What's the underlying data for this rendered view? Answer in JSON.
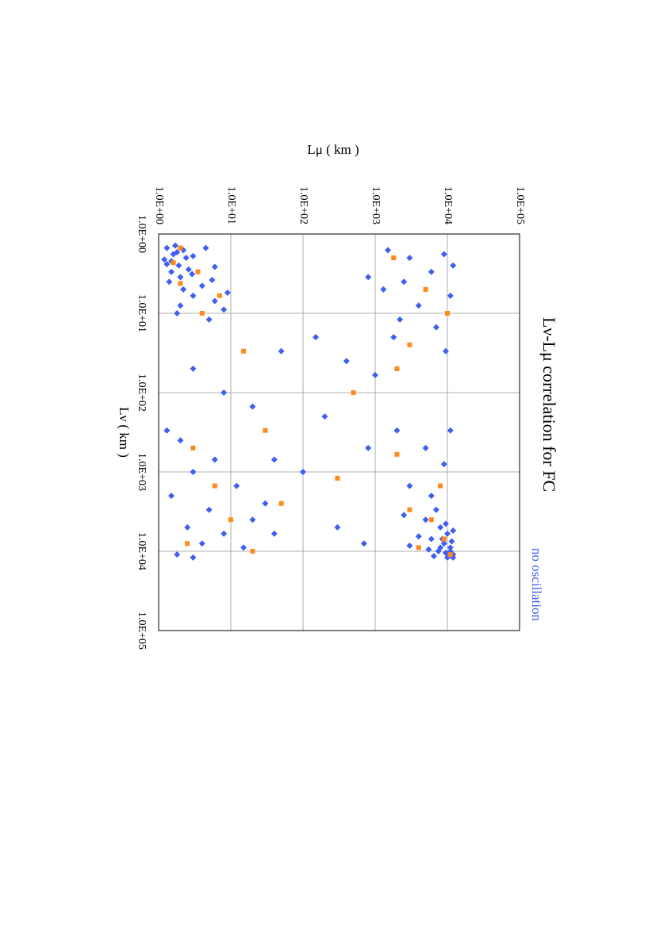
{
  "chart_data": {
    "type": "scatter",
    "title": "Lν-Lμ correlation for FC",
    "x_label": "Lν  ( km )",
    "y_label": "Lμ  ( km )",
    "annotation": "no oscillation",
    "log_x": true,
    "log_y": true,
    "grid": true,
    "xlim": [
      1,
      100000
    ],
    "ylim": [
      1,
      100000
    ],
    "xticks": [
      {
        "value": 1,
        "label": "1.0E+00"
      },
      {
        "value": 10,
        "label": "1.0E+01"
      },
      {
        "value": 100,
        "label": "1.0E+02"
      },
      {
        "value": 1000,
        "label": "1.0E+03"
      },
      {
        "value": 10000,
        "label": "1.0E+04"
      },
      {
        "value": 100000,
        "label": "1.0E+05"
      }
    ],
    "yticks": [
      {
        "value": 1,
        "label": "1.0E+00"
      },
      {
        "value": 10,
        "label": "1.0E+01"
      },
      {
        "value": 100,
        "label": "1.0E+02"
      },
      {
        "value": 1000,
        "label": "1.0E+03"
      },
      {
        "value": 10000,
        "label": "1.0E+04"
      },
      {
        "value": 100000,
        "label": "1.0E+05"
      }
    ],
    "series": [
      {
        "color": "#3f5ff2",
        "marker": "diamond",
        "x": [
          1.5,
          1.8,
          2.1,
          2.5,
          1.6,
          3,
          2.8,
          1.9,
          3.5,
          4,
          2.2,
          1.7,
          3.2,
          2.4,
          1.4,
          2,
          5,
          6,
          4.5,
          3.8,
          7,
          8,
          1.5,
          2.6,
          10,
          12,
          5.5,
          9,
          1.6,
          2,
          3,
          1.8,
          4,
          6,
          8,
          15,
          2.5,
          20,
          30,
          5,
          12,
          3.5,
          4000,
          5000,
          6000,
          7000,
          8000,
          9000,
          10000,
          11000,
          12000,
          6500,
          8500,
          5500,
          3500,
          9500,
          7500,
          10500,
          11500,
          4500,
          3000,
          2000,
          1500,
          800,
          500,
          300,
          12000,
          9000,
          7000,
          10000,
          400,
          1000,
          2000,
          3000,
          5000,
          8000,
          11000,
          6000,
          1500,
          4000,
          700,
          9000,
          2500,
          300,
          12000,
          6000,
          50,
          100,
          30,
          200,
          60,
          500,
          40,
          150,
          1000,
          20,
          300,
          5000,
          8000,
          700
        ],
        "values": [
          1.3,
          1.6,
          1.2,
          1.9,
          2.2,
          1.5,
          2.6,
          3,
          2,
          1.4,
          1.5,
          1.8,
          2.9,
          1.3,
          1.7,
          2.4,
          2.2,
          3,
          4,
          5.5,
          6,
          2,
          4.5,
          6,
          1.8,
          5,
          9,
          8,
          1500,
          3000,
          6000,
          9000,
          2500,
          11000,
          4000,
          7000,
          12000,
          1800,
          9500,
          1300,
          2200,
          800,
          5000,
          8000,
          10000,
          6000,
          9000,
          11000,
          7500,
          12000,
          10000,
          4000,
          3000,
          12000,
          2500,
          5500,
          11500,
          9500,
          6500,
          9500,
          7000,
          6000,
          3000,
          9000,
          5000,
          11000,
          12000,
          8000,
          8500,
          11000,
          2,
          3,
          1.5,
          5,
          2.5,
          4,
          1.8,
          8,
          12,
          20,
          6,
          15,
          30,
          1.3,
          3,
          40,
          3,
          8,
          50,
          200,
          1000,
          800,
          400,
          20,
          100,
          150,
          2000,
          300,
          700,
          40
        ]
      },
      {
        "color": "#ff8a1c",
        "marker": "square",
        "x": [
          1.5,
          2.3,
          3,
          4.2,
          6,
          10,
          2,
          5,
          10,
          25,
          4000,
          7000,
          9000,
          11000,
          3000,
          1500,
          600,
          500,
          1500,
          4000,
          8000,
          10000,
          2500,
          30,
          100,
          50,
          300,
          1200
        ],
        "values": [
          2,
          1.6,
          3.5,
          2,
          7,
          4,
          1800,
          5000,
          10000,
          3000,
          6000,
          9000,
          4000,
          11000,
          3000,
          8000,
          2000,
          3,
          6,
          10,
          2.5,
          20,
          50,
          15,
          500,
          2000,
          30,
          300
        ]
      }
    ]
  }
}
